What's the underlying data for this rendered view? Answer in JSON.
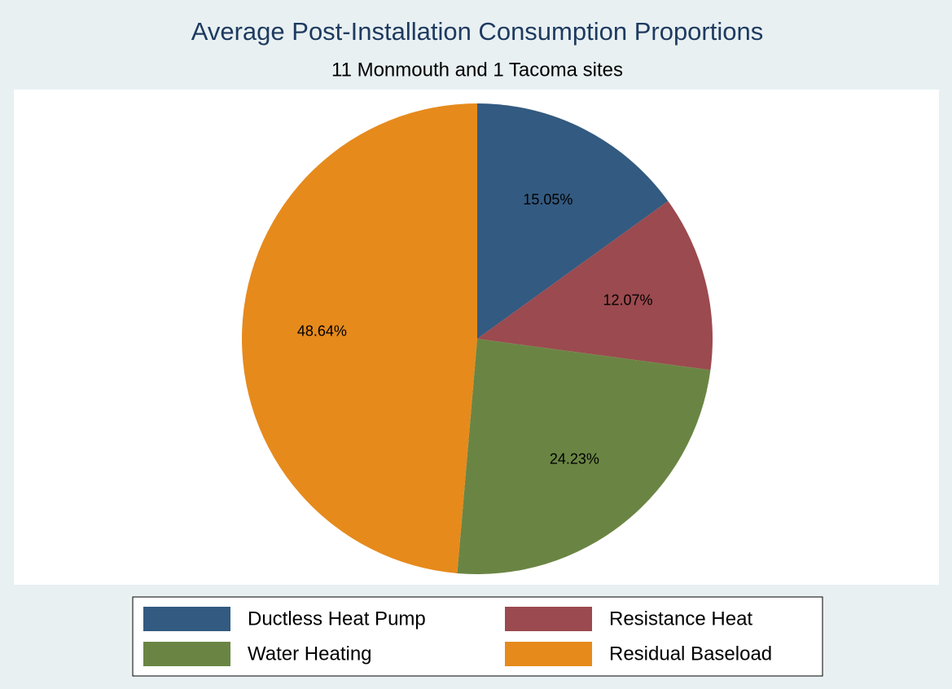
{
  "chart_data": {
    "type": "pie",
    "title": "Average Post-Installation Consumption Proportions",
    "subtitle": "11 Monmouth and 1 Tacoma sites",
    "categories": [
      "Ductless Heat Pump",
      "Resistance Heat",
      "Water Heating",
      "Residual Baseload"
    ],
    "values": [
      15.05,
      12.07,
      24.23,
      48.64
    ],
    "value_labels": [
      "15.05%",
      "12.07%",
      "24.23%",
      "48.64%"
    ],
    "colors": [
      "#335a80",
      "#9b4a4f",
      "#6a8543",
      "#e68a1c"
    ],
    "legend": "bottom"
  }
}
